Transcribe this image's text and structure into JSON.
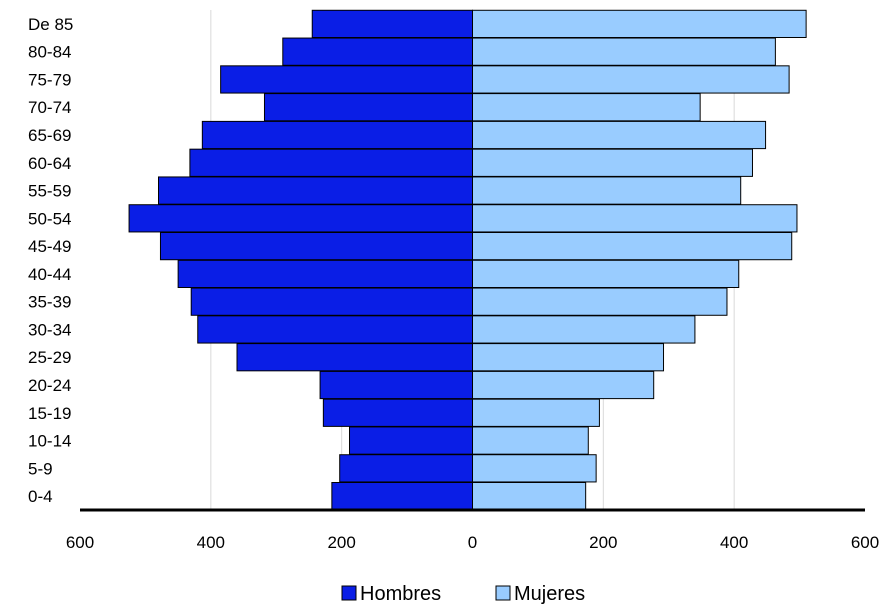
{
  "chart_data": {
    "type": "bar",
    "orientation": "horizontal",
    "layout": "population-pyramid",
    "categories": [
      "0-4",
      "5-9",
      "10-14",
      "15-19",
      "20-24",
      "25-29",
      "30-34",
      "35-39",
      "40-44",
      "45-49",
      "50-54",
      "55-59",
      "60-64",
      "65-69",
      "70-74",
      "75-79",
      "80-84",
      "De 85"
    ],
    "series": [
      {
        "name": "Hombres",
        "color": "#0a1ee6",
        "side": "left",
        "values": [
          215,
          203,
          188,
          228,
          233,
          360,
          420,
          430,
          450,
          477,
          525,
          480,
          432,
          413,
          318,
          385,
          290,
          245
        ]
      },
      {
        "name": "Mujeres",
        "color": "#99ccff",
        "side": "right",
        "values": [
          173,
          189,
          177,
          194,
          277,
          292,
          340,
          389,
          407,
          488,
          496,
          410,
          428,
          448,
          348,
          484,
          463,
          510
        ]
      }
    ],
    "xlim": [
      -600,
      600
    ],
    "xticks": [
      -600,
      -400,
      -200,
      0,
      200,
      400,
      600
    ],
    "xtick_labels": [
      "600",
      "400",
      "200",
      "0",
      "200",
      "400",
      "600"
    ],
    "grid": "vertical",
    "legend_position": "bottom"
  }
}
